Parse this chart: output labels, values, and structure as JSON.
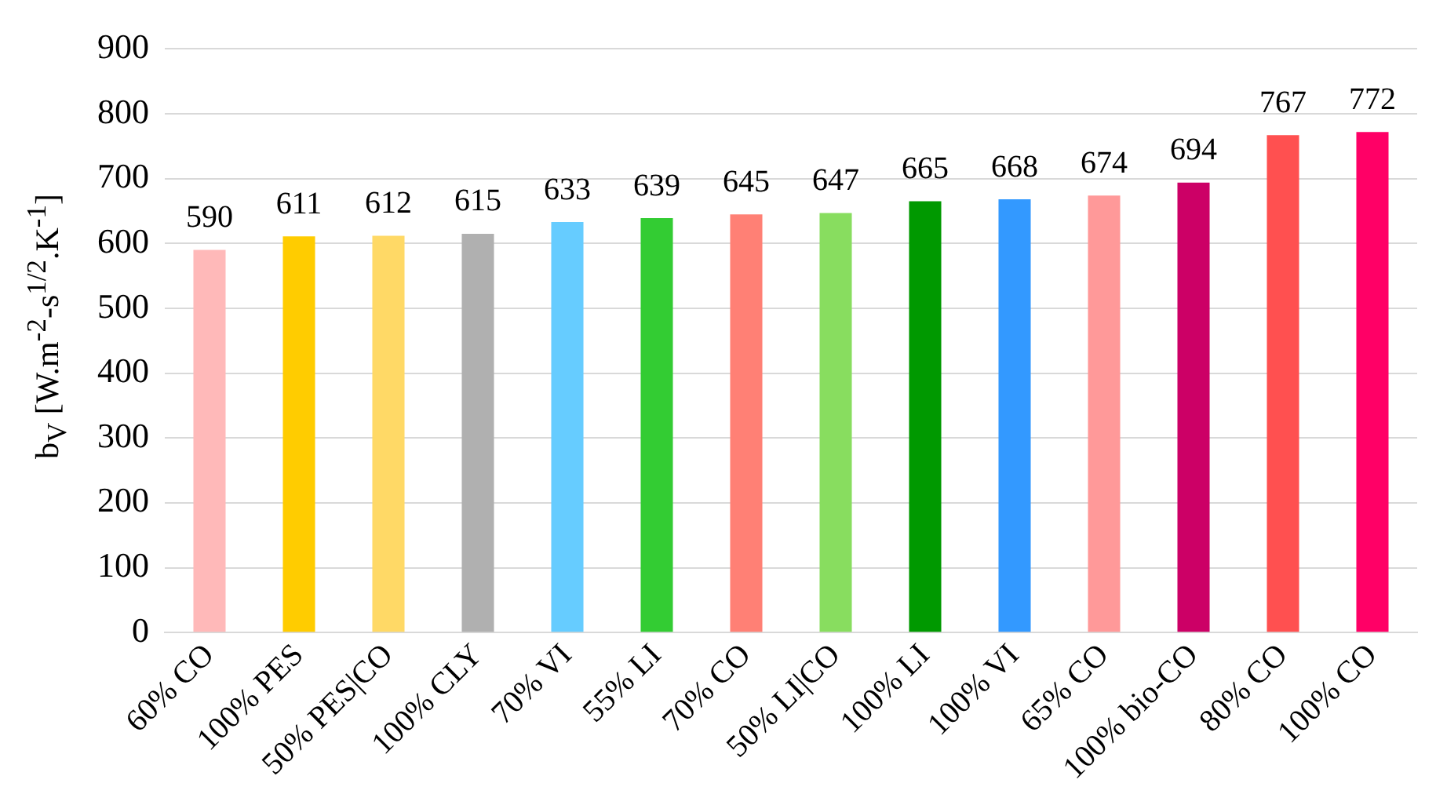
{
  "chart_data": {
    "type": "bar",
    "ylabel": "b$_{V}$ [W.m$^{-2}$-s$^{1/2}$.K$^{-1}$]",
    "categories": [
      "60% CO",
      "100% PES",
      "50% PES|CO",
      "100% CLY",
      "70% VI",
      "55% LI",
      "70% CO",
      "50% LI|CO",
      "100% LI",
      "100% VI",
      "65% CO",
      "100% bio-CO",
      "80% CO",
      "100% CO"
    ],
    "values": [
      590,
      611,
      612,
      615,
      633,
      639,
      645,
      647,
      665,
      668,
      674,
      694,
      767,
      772
    ],
    "colors": [
      "#ffb9b9",
      "#ffcc00",
      "#ffd966",
      "#b0b0b0",
      "#66ccff",
      "#33cc33",
      "#ff8075",
      "#88dd5f",
      "#009900",
      "#3399ff",
      "#ff9999",
      "#cc0066",
      "#ff5050",
      "#ff0066"
    ],
    "ylim": [
      0,
      900
    ],
    "yticks": [
      0,
      100,
      200,
      300,
      400,
      500,
      600,
      700,
      800,
      900
    ],
    "grid": "y",
    "data_labels": true
  }
}
